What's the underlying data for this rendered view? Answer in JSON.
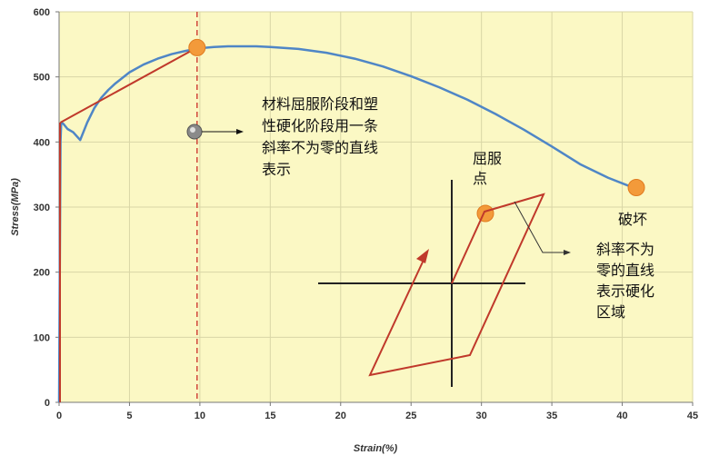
{
  "chart_data": {
    "type": "line",
    "title": "",
    "xlabel": "Strain(%)",
    "ylabel": "Stress(MPa)",
    "xlim": [
      0,
      45
    ],
    "ylim": [
      0,
      600
    ],
    "x_ticks": [
      "0",
      "5",
      "10",
      "15",
      "20",
      "25",
      "30",
      "35",
      "40",
      "45"
    ],
    "y_ticks": [
      "0",
      "100",
      "200",
      "300",
      "400",
      "500",
      "600"
    ],
    "grid": true,
    "colors": {
      "curve": "#4f86c6",
      "fit_line": "#c0392b",
      "marker": "#f39a3a",
      "background": "#fbf8c4"
    },
    "series": [
      {
        "name": "",
        "x": [
          0.0,
          0.1,
          0.15,
          0.3,
          0.6,
          1.0,
          1.5,
          2.0,
          2.5,
          3.0,
          3.5,
          4.0,
          5.0,
          6.0,
          7.0,
          8.0,
          9.0,
          10.0,
          11.0,
          12.0,
          13.0,
          14.0,
          15.0,
          17.0,
          19.0,
          21.0,
          23.0,
          25.0,
          27.0,
          29.0,
          31.0,
          33.0,
          35.0,
          37.0,
          39.0,
          41.0
        ],
        "y": [
          0,
          400,
          430,
          428,
          420,
          415,
          403,
          430,
          452,
          468,
          480,
          490,
          507,
          519,
          528,
          535,
          540,
          544,
          546,
          547,
          547,
          547,
          546,
          543,
          537,
          528,
          516,
          501,
          484,
          465,
          443,
          419,
          393,
          366,
          345,
          328
        ]
      },
      {
        "name": "",
        "x": [
          0.1,
          9.8
        ],
        "y": [
          430,
          545
        ]
      }
    ],
    "vertical_marker_x": 9.8,
    "points": [
      {
        "x": 9.8,
        "y": 545
      },
      {
        "x": 41.0,
        "y": 330
      }
    ],
    "annotations": [
      {
        "text": "材料屈服阶段和塑性硬化阶段用一条斜率不为零的直线表示",
        "lines": [
          "材料屈服阶段和塑",
          "性硬化阶段用一条",
          "斜率不为零的直线",
          "表示"
        ]
      },
      {
        "text": "屈服点",
        "lines": [
          "屈服",
          "点"
        ]
      },
      {
        "text": "破坏",
        "lines": [
          "破坏"
        ]
      },
      {
        "text": "斜率不为零的直线表示硬化区域",
        "lines": [
          "斜率不为",
          "零的直线",
          "表示硬化",
          "区域"
        ]
      }
    ]
  }
}
